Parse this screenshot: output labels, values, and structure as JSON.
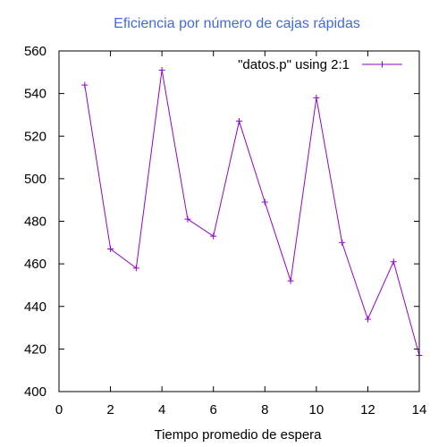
{
  "chart_data": {
    "type": "line",
    "title": "Eficiencia por número de cajas rápidas",
    "xlabel": "Tiempo promedio de espera",
    "ylabel": "",
    "xlim": [
      0,
      14
    ],
    "ylim": [
      400,
      560
    ],
    "x_ticks": [
      "0",
      "2",
      "4",
      "6",
      "8",
      "10",
      "12",
      "14"
    ],
    "y_ticks": [
      "400",
      "420",
      "440",
      "460",
      "480",
      "500",
      "520",
      "540",
      "560"
    ],
    "legend_position": "top-right",
    "series": [
      {
        "name": "\"datos.p\" using 2:1",
        "color": "#9400d3",
        "marker": "plus",
        "x": [
          1,
          2,
          3,
          4,
          5,
          6,
          7,
          8,
          9,
          10,
          11,
          12,
          13,
          14
        ],
        "y": [
          544,
          467,
          458,
          551,
          481,
          473,
          527,
          489,
          452,
          538,
          470,
          434,
          461,
          417
        ]
      }
    ]
  },
  "colors": {
    "title": "#4169e1",
    "axis": "#000000"
  }
}
